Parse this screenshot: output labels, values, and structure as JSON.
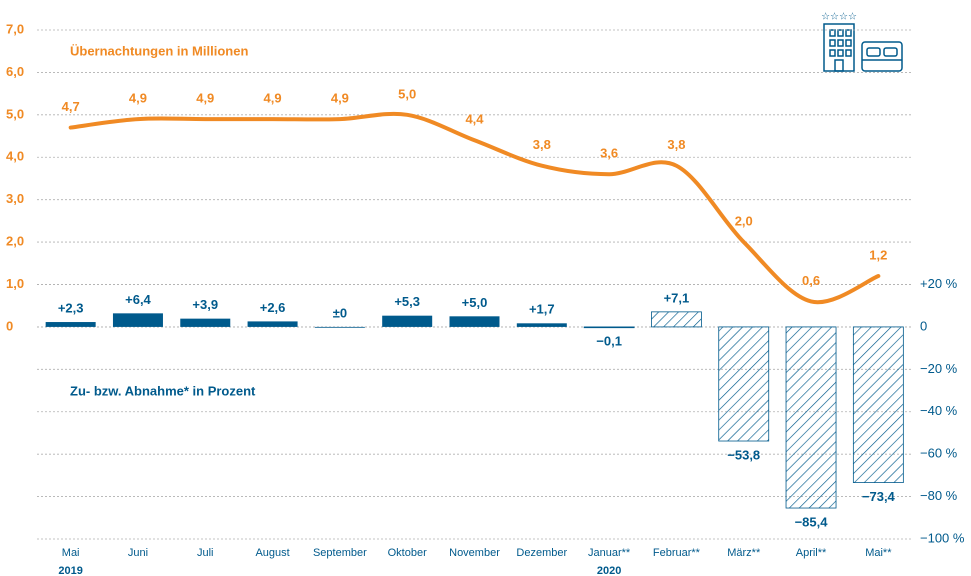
{
  "chart_data": {
    "type": "bar-line",
    "categories": [
      "Mai",
      "Juni",
      "Juli",
      "August",
      "September",
      "Oktober",
      "November",
      "Dezember",
      "Januar**",
      "Februar**",
      "März**",
      "April**",
      "Mai**"
    ],
    "years": [
      "2019",
      null,
      null,
      null,
      null,
      null,
      null,
      null,
      "2020",
      null,
      null,
      null,
      null
    ],
    "series": [
      {
        "name": "Übernachtungen in Millionen",
        "type": "line",
        "color": "#f08a24",
        "axis": "y",
        "values": [
          4.7,
          4.9,
          4.9,
          4.9,
          4.9,
          5.0,
          4.4,
          3.8,
          3.6,
          3.8,
          2.0,
          0.6,
          1.2
        ],
        "value_labels": [
          "4,7",
          "4,9",
          "4,9",
          "4,9",
          "4,9",
          "5,0",
          "4,4",
          "3,8",
          "3,6",
          "3,8",
          "2,0",
          "0,6",
          "1,2"
        ]
      },
      {
        "name": "Zu- bzw. Abnahme* in Prozent",
        "type": "bar",
        "color": "#005a8c",
        "axis": "y2",
        "values": [
          2.3,
          6.4,
          3.9,
          2.6,
          0,
          5.3,
          5.0,
          1.7,
          -0.1,
          7.1,
          -53.8,
          -85.4,
          -73.4
        ],
        "value_labels": [
          "+2,3",
          "+6,4",
          "+3,9",
          "+2,6",
          "±0",
          "+5,3",
          "+5,0",
          "+1,7",
          "−0,1",
          "+7,1",
          "−53,8",
          "−85,4",
          "−73,4"
        ],
        "patterns": [
          "solid",
          "solid",
          "solid",
          "solid",
          "solid",
          "solid",
          "solid",
          "solid",
          "hatched",
          "hatched",
          "hatched",
          "hatched",
          "hatched"
        ]
      }
    ],
    "ylim": [
      -5,
      7
    ],
    "yticks": [
      {
        "value": 7,
        "label": "7,0"
      },
      {
        "value": 6,
        "label": "6,0"
      },
      {
        "value": 5,
        "label": "5,0"
      },
      {
        "value": 4,
        "label": "4,0"
      },
      {
        "value": 3,
        "label": "3,0"
      },
      {
        "value": 2,
        "label": "2,0"
      },
      {
        "value": 1,
        "label": "1,0"
      },
      0
    ],
    "y2lim": [
      -100,
      140
    ],
    "y2ticks": [
      {
        "value": 20,
        "label": "+20 %"
      },
      0,
      {
        "value": -20,
        "label": "−20 %"
      },
      {
        "value": -40,
        "label": "−40 %"
      },
      {
        "value": -60,
        "label": "−60 %"
      },
      {
        "value": -80,
        "label": "−80 %"
      },
      {
        "value": -100,
        "label": "−100 %"
      }
    ],
    "grid": true
  }
}
